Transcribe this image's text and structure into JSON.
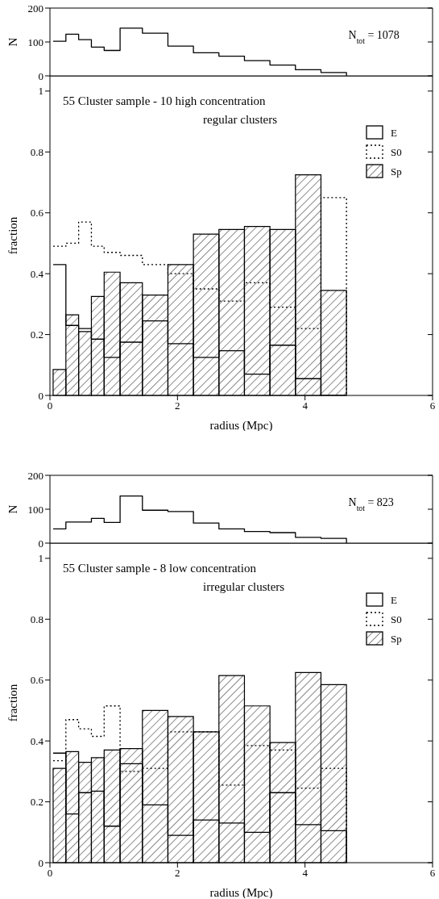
{
  "chart_data": [
    {
      "type": "step",
      "ylabel": "N",
      "xlim": [
        0,
        6
      ],
      "ylim": [
        0,
        200
      ],
      "yticks": [
        0,
        100,
        200
      ],
      "tick_labels": "y",
      "annotations": [
        "N$_{tot}$ = 1078"
      ],
      "series": [
        {
          "color": "#000000",
          "x": [
            0.05,
            0.25,
            0.45,
            0.65,
            0.85,
            1.1,
            1.45,
            1.85,
            2.25,
            2.65,
            3.05,
            3.45,
            3.85,
            4.25,
            4.65
          ],
          "values": [
            102,
            123,
            107,
            85,
            75,
            141,
            126,
            88,
            68,
            58,
            45,
            32,
            18,
            10,
            0
          ]
        }
      ]
    },
    {
      "type": "histogram",
      "title": "55 Cluster sample - 10 high concentration\nregular clusters",
      "xlabel": "radius (Mpc)",
      "ylabel": "fraction",
      "xlim": [
        0,
        6
      ],
      "xticks": [
        0,
        2,
        4,
        6
      ],
      "ylim": [
        0,
        1.05
      ],
      "yticks": [
        0,
        0.2,
        0.4,
        0.6,
        0.8,
        1
      ],
      "legend": "top right",
      "bins": [
        0.05,
        0.25,
        0.45,
        0.65,
        0.85,
        1.1,
        1.45,
        1.85,
        2.25,
        2.65,
        3.05,
        3.45,
        3.85,
        4.25,
        4.65
      ],
      "series": [
        {
          "name": "E",
          "type": "step",
          "color": "#000000",
          "line_style": "solid",
          "x": [
            0.05,
            0.25,
            0.45,
            0.65,
            0.85,
            1.1,
            1.45,
            1.85,
            2.25,
            2.65,
            3.05,
            3.45,
            3.85,
            4.25,
            4.65
          ],
          "values": [
            0.43,
            0.23,
            0.22,
            0.185,
            0.125,
            0.175,
            0.245,
            0.17,
            0.125,
            0.147,
            0.07,
            0.165,
            0.055,
            0,
            0
          ]
        },
        {
          "name": "S0",
          "type": "step",
          "color": "#000000",
          "line_style": "dotted",
          "x": [
            0.05,
            0.25,
            0.45,
            0.65,
            0.85,
            1.1,
            1.45,
            1.85,
            2.25,
            2.65,
            3.05,
            3.45,
            3.85,
            4.25,
            4.65
          ],
          "values": [
            0.49,
            0.5,
            0.57,
            0.49,
            0.47,
            0.46,
            0.43,
            0.4,
            0.35,
            0.31,
            0.37,
            0.29,
            0.22,
            0.65,
            0
          ]
        },
        {
          "name": "Sp",
          "color": "#000000",
          "values": [
            0.085,
            0.265,
            0.21,
            0.325,
            0.405,
            0.37,
            0.33,
            0.43,
            0.53,
            0.545,
            0.555,
            0.545,
            0.725,
            0.345
          ]
        }
      ]
    },
    {
      "type": "step",
      "ylabel": "N",
      "xlim": [
        0,
        6
      ],
      "ylim": [
        0,
        200
      ],
      "yticks": [
        0,
        100,
        200
      ],
      "tick_labels": "y",
      "annotations": [
        "N$_{tot}$ = 823"
      ],
      "series": [
        {
          "color": "#000000",
          "x": [
            0.05,
            0.25,
            0.45,
            0.65,
            0.85,
            1.1,
            1.45,
            1.85,
            2.25,
            2.65,
            3.05,
            3.45,
            3.85,
            4.25,
            4.65
          ],
          "values": [
            42,
            62,
            62,
            73,
            61,
            139,
            97,
            93,
            59,
            42,
            34,
            31,
            17,
            14,
            0
          ]
        }
      ]
    },
    {
      "type": "histogram",
      "title": "55 Cluster sample - 8 low concentration\nirregular clusters",
      "xlabel": "radius (Mpc)",
      "ylabel": "fraction",
      "xlim": [
        0,
        6
      ],
      "xticks": [
        0,
        2,
        4,
        6
      ],
      "ylim": [
        0,
        1.05
      ],
      "yticks": [
        0,
        0.2,
        0.4,
        0.6,
        0.8,
        1
      ],
      "legend": "top right",
      "bins": [
        0.05,
        0.25,
        0.45,
        0.65,
        0.85,
        1.1,
        1.45,
        1.85,
        2.25,
        2.65,
        3.05,
        3.45,
        3.85,
        4.25,
        4.65
      ],
      "series": [
        {
          "name": "E",
          "type": "step",
          "color": "#000000",
          "line_style": "solid",
          "x": [
            0.05,
            0.25,
            0.45,
            0.65,
            0.85,
            1.1,
            1.45,
            1.85,
            2.25,
            2.65,
            3.05,
            3.45,
            3.85,
            4.25,
            4.65
          ],
          "values": [
            0.36,
            0.16,
            0.23,
            0.235,
            0.12,
            0.325,
            0.19,
            0.09,
            0.14,
            0.13,
            0.1,
            0.23,
            0.125,
            0.105,
            0
          ]
        },
        {
          "name": "S0",
          "type": "step",
          "color": "#000000",
          "line_style": "dotted",
          "x": [
            0.05,
            0.25,
            0.45,
            0.65,
            0.85,
            1.1,
            1.45,
            1.85,
            2.25,
            2.65,
            3.05,
            3.45,
            3.85,
            4.25,
            4.65
          ],
          "values": [
            0.335,
            0.47,
            0.44,
            0.415,
            0.515,
            0.3,
            0.31,
            0.43,
            0.43,
            0.255,
            0.385,
            0.37,
            0.245,
            0.31,
            0
          ]
        },
        {
          "name": "Sp",
          "color": "#000000",
          "values": [
            0.31,
            0.365,
            0.33,
            0.345,
            0.37,
            0.375,
            0.5,
            0.48,
            0.43,
            0.615,
            0.515,
            0.395,
            0.625,
            0.585
          ]
        }
      ]
    }
  ]
}
